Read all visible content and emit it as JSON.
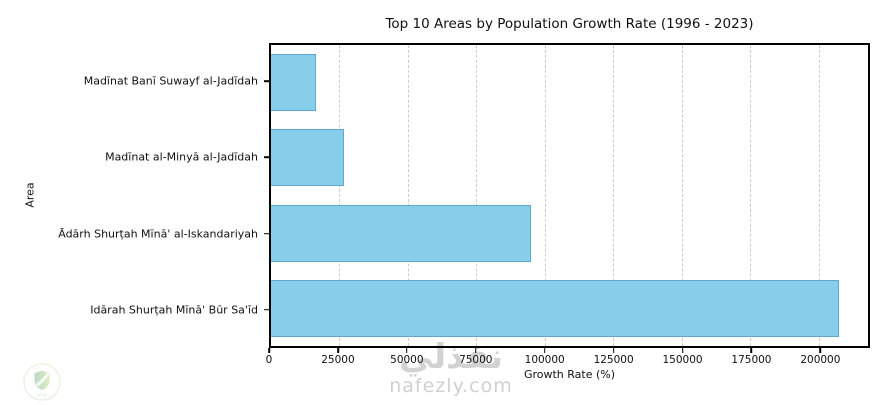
{
  "chart_data": {
    "type": "bar",
    "orientation": "horizontal",
    "title": "Top 10 Areas by Population Growth Rate (1996 - 2023)",
    "xlabel": "Growth Rate (%)",
    "ylabel": "Area",
    "categories": [
      "Madīnat Banī Suwayf al-Jadīdah",
      "Madīnat al-Minyā al-Jadīdah",
      "Ādārh Shurṭah Mīnā' al-Iskandariyah",
      "Idārah Shurṭah Mīnā' Būr Sa'īd"
    ],
    "values": [
      16500,
      26800,
      95000,
      207500
    ],
    "xticks": [
      0,
      25000,
      50000,
      75000,
      100000,
      125000,
      150000,
      175000,
      200000
    ],
    "xlim": [
      0,
      218000
    ],
    "grid": "vertical-dashed",
    "legend": "none",
    "bar_color": "#87CEEB",
    "bar_edge_color": "#5fa8cf",
    "gridline_color": "#cccccc"
  },
  "watermark": {
    "brand_arabic": "نفذلي",
    "brand_domain": "nafezly.com"
  }
}
